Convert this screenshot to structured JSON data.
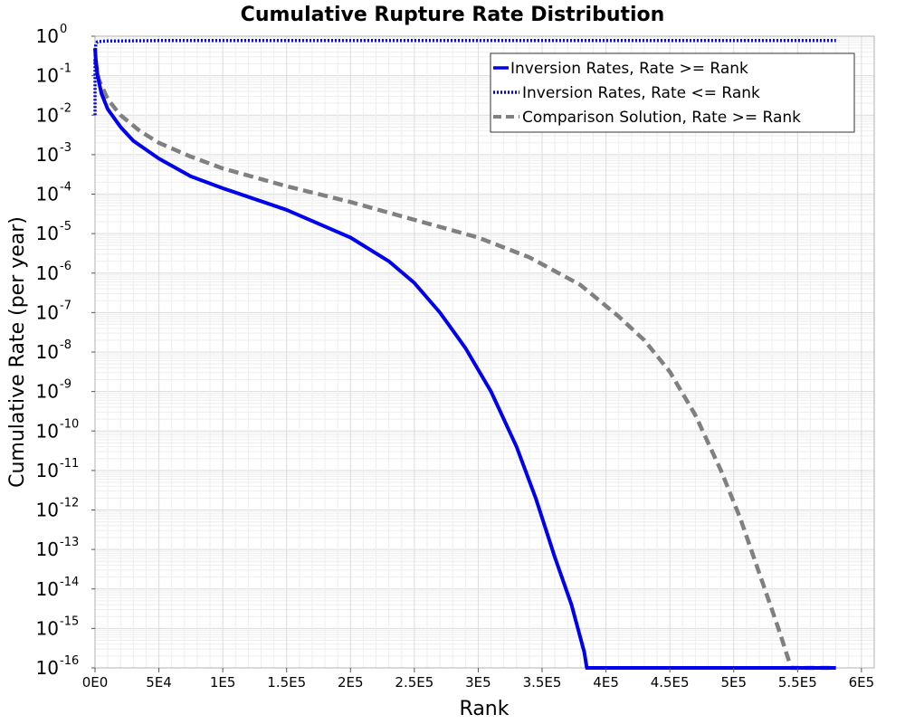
{
  "chart_data": {
    "type": "line",
    "title": "Cumulative Rupture Rate Distribution",
    "xlabel": "Rank",
    "ylabel": "Cumulative Rate (per year)",
    "xlim": [
      0,
      610000
    ],
    "ylim_log10": [
      -16,
      0
    ],
    "y_scale": "log",
    "grid": true,
    "legend_position": "top-right",
    "x_ticks": [
      {
        "value": 0,
        "label": "0E0"
      },
      {
        "value": 50000,
        "label": "5E4"
      },
      {
        "value": 100000,
        "label": "1E5"
      },
      {
        "value": 150000,
        "label": "1.5E5"
      },
      {
        "value": 200000,
        "label": "2E5"
      },
      {
        "value": 250000,
        "label": "2.5E5"
      },
      {
        "value": 300000,
        "label": "3E5"
      },
      {
        "value": 350000,
        "label": "3.5E5"
      },
      {
        "value": 400000,
        "label": "4E5"
      },
      {
        "value": 450000,
        "label": "4.5E5"
      },
      {
        "value": 500000,
        "label": "5E5"
      },
      {
        "value": 550000,
        "label": "5.5E5"
      },
      {
        "value": 600000,
        "label": "6E5"
      }
    ],
    "y_ticks": [
      {
        "exp": 0,
        "base": "10",
        "sup": "0"
      },
      {
        "exp": -1,
        "base": "10",
        "sup": "-1"
      },
      {
        "exp": -2,
        "base": "10",
        "sup": "-2"
      },
      {
        "exp": -3,
        "base": "10",
        "sup": "-3"
      },
      {
        "exp": -4,
        "base": "10",
        "sup": "-4"
      },
      {
        "exp": -5,
        "base": "10",
        "sup": "-5"
      },
      {
        "exp": -6,
        "base": "10",
        "sup": "-6"
      },
      {
        "exp": -7,
        "base": "10",
        "sup": "-7"
      },
      {
        "exp": -8,
        "base": "10",
        "sup": "-8"
      },
      {
        "exp": -9,
        "base": "10",
        "sup": "-9"
      },
      {
        "exp": -10,
        "base": "10",
        "sup": "-10"
      },
      {
        "exp": -11,
        "base": "10",
        "sup": "-11"
      },
      {
        "exp": -12,
        "base": "10",
        "sup": "-12"
      },
      {
        "exp": -13,
        "base": "10",
        "sup": "-13"
      },
      {
        "exp": -14,
        "base": "10",
        "sup": "-14"
      },
      {
        "exp": -15,
        "base": "10",
        "sup": "-15"
      },
      {
        "exp": -16,
        "base": "10",
        "sup": "-16"
      }
    ],
    "series": [
      {
        "name": "Inversion Rates, Rate >= Rank",
        "color": "#0000ee",
        "style": "solid",
        "x": [
          0,
          500,
          2000,
          5000,
          10000,
          20000,
          30000,
          50000,
          75000,
          100000,
          150000,
          200000,
          230000,
          250000,
          270000,
          290000,
          310000,
          330000,
          345000,
          360000,
          373000,
          383000,
          385000,
          420000,
          500000,
          580000
        ],
        "log10_y": [
          -0.3,
          -0.55,
          -1.0,
          -1.45,
          -1.85,
          -2.3,
          -2.65,
          -3.1,
          -3.55,
          -3.85,
          -4.4,
          -5.1,
          -5.7,
          -6.25,
          -7.0,
          -7.9,
          -9.0,
          -10.4,
          -11.7,
          -13.2,
          -14.4,
          -15.6,
          -16.0,
          -16.0,
          -16.0,
          -16.0
        ]
      },
      {
        "name": "Inversion Rates, Rate <= Rank",
        "color": "#0000ee",
        "style": "dotted",
        "x": [
          0,
          0,
          500,
          1000,
          2000,
          5000,
          10000,
          20000,
          50000,
          100000,
          300000,
          580000
        ],
        "log10_y": [
          -2.0,
          -0.65,
          -0.25,
          -0.17,
          -0.14,
          -0.13,
          -0.12,
          -0.12,
          -0.11,
          -0.11,
          -0.11,
          -0.11
        ]
      },
      {
        "name": "Comparison Solution, Rate >= Rank",
        "color": "#808080",
        "style": "dashed",
        "x": [
          0,
          3000,
          10000,
          20000,
          35000,
          50000,
          75000,
          100000,
          150000,
          200000,
          250000,
          300000,
          340000,
          380000,
          410000,
          430000,
          450000,
          470000,
          490000,
          505000,
          520000,
          535000,
          545000,
          560000,
          580000
        ],
        "log10_y": [
          -0.6,
          -1.1,
          -1.6,
          -2.0,
          -2.4,
          -2.7,
          -3.05,
          -3.35,
          -3.8,
          -4.2,
          -4.65,
          -5.1,
          -5.6,
          -6.3,
          -7.1,
          -7.7,
          -8.5,
          -9.6,
          -11.0,
          -12.2,
          -13.6,
          -15.0,
          -16.0,
          -16.0,
          -16.0
        ]
      }
    ]
  }
}
